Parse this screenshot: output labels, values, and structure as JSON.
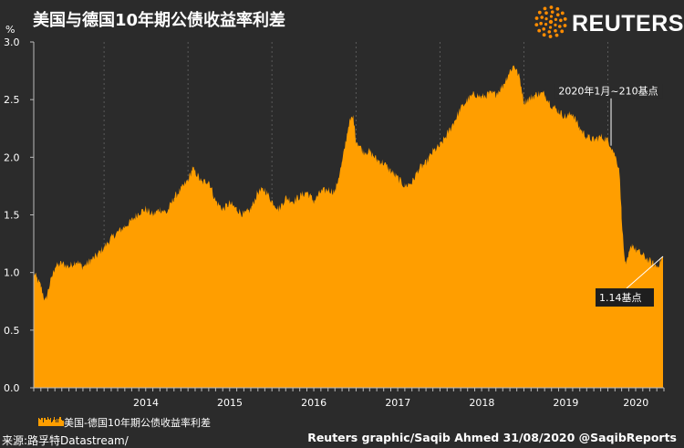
{
  "header": {
    "title": "美国与德国10年期公债收益率利差",
    "brand": "REUTERS"
  },
  "footer": {
    "source": "来源:路孚特Datastream/",
    "credit": "Reuters graphic/Saqib Ahmed 31/08/2020 @SaqibReports"
  },
  "colors": {
    "background": "#2b2b2b",
    "area": "#ff9e00",
    "grid": "#5a5a5a",
    "brand_logo": "#ff8c00"
  },
  "chart_data": {
    "type": "area",
    "unit_label": "%",
    "y_range": [
      0,
      3.0
    ],
    "y_ticks": [
      0.0,
      0.5,
      1.0,
      1.5,
      2.0,
      2.5,
      3.0
    ],
    "y_tick_labels": [
      "0.0",
      "0.5",
      "1.0",
      "1.5",
      "2.0",
      "2.5",
      "3.0"
    ],
    "x_range": [
      "2013-03-01",
      "2020-09-01"
    ],
    "x_tick_labels": [
      "2014",
      "2015",
      "2016",
      "2017",
      "2018",
      "2019",
      "2020"
    ],
    "grid": "vertical dashed at year boundaries",
    "legend": {
      "label": "美国-德国10年期公债收益率利差",
      "placement": "bottom-left"
    },
    "annotations": [
      {
        "text": "2020年1月~210基点",
        "x": "2020-01-15",
        "y": 2.1
      },
      {
        "text": "1.14基点",
        "x": "2020-08-28",
        "y": 1.14
      }
    ],
    "series": [
      {
        "name": "美国-德国10年期公债收益率利差",
        "points": [
          [
            "2013-03-01",
            1.0
          ],
          [
            "2013-04-01",
            0.88
          ],
          [
            "2013-04-20",
            0.75
          ],
          [
            "2013-05-10",
            0.9
          ],
          [
            "2013-06-01",
            1.05
          ],
          [
            "2013-07-01",
            1.08
          ],
          [
            "2013-08-01",
            1.05
          ],
          [
            "2013-09-01",
            1.1
          ],
          [
            "2013-10-01",
            1.05
          ],
          [
            "2013-11-01",
            1.1
          ],
          [
            "2013-12-01",
            1.15
          ],
          [
            "2014-01-01",
            1.22
          ],
          [
            "2014-02-01",
            1.3
          ],
          [
            "2014-03-01",
            1.35
          ],
          [
            "2014-04-01",
            1.4
          ],
          [
            "2014-05-01",
            1.45
          ],
          [
            "2014-06-01",
            1.52
          ],
          [
            "2014-07-01",
            1.55
          ],
          [
            "2014-08-01",
            1.5
          ],
          [
            "2014-09-01",
            1.55
          ],
          [
            "2014-10-01",
            1.52
          ],
          [
            "2014-11-01",
            1.65
          ],
          [
            "2014-12-01",
            1.72
          ],
          [
            "2015-01-01",
            1.8
          ],
          [
            "2015-01-20",
            1.9
          ],
          [
            "2015-02-10",
            1.85
          ],
          [
            "2015-03-01",
            1.78
          ],
          [
            "2015-04-01",
            1.8
          ],
          [
            "2015-05-01",
            1.62
          ],
          [
            "2015-06-01",
            1.55
          ],
          [
            "2015-07-01",
            1.6
          ],
          [
            "2015-08-01",
            1.55
          ],
          [
            "2015-09-01",
            1.5
          ],
          [
            "2015-10-01",
            1.55
          ],
          [
            "2015-11-01",
            1.7
          ],
          [
            "2015-12-01",
            1.72
          ],
          [
            "2016-01-01",
            1.62
          ],
          [
            "2016-02-01",
            1.55
          ],
          [
            "2016-03-01",
            1.65
          ],
          [
            "2016-04-01",
            1.62
          ],
          [
            "2016-05-01",
            1.66
          ],
          [
            "2016-06-01",
            1.7
          ],
          [
            "2016-07-01",
            1.62
          ],
          [
            "2016-08-01",
            1.7
          ],
          [
            "2016-09-01",
            1.72
          ],
          [
            "2016-10-01",
            1.7
          ],
          [
            "2016-11-01",
            1.95
          ],
          [
            "2016-12-01",
            2.3
          ],
          [
            "2016-12-20",
            2.35
          ],
          [
            "2017-01-01",
            2.15
          ],
          [
            "2017-02-01",
            2.05
          ],
          [
            "2017-03-01",
            2.05
          ],
          [
            "2017-04-01",
            1.98
          ],
          [
            "2017-05-01",
            1.95
          ],
          [
            "2017-06-01",
            1.88
          ],
          [
            "2017-07-01",
            1.82
          ],
          [
            "2017-08-01",
            1.75
          ],
          [
            "2017-09-01",
            1.78
          ],
          [
            "2017-10-01",
            1.9
          ],
          [
            "2017-11-01",
            1.95
          ],
          [
            "2017-12-01",
            2.05
          ],
          [
            "2018-01-01",
            2.1
          ],
          [
            "2018-02-01",
            2.2
          ],
          [
            "2018-03-01",
            2.3
          ],
          [
            "2018-04-01",
            2.42
          ],
          [
            "2018-05-01",
            2.5
          ],
          [
            "2018-06-01",
            2.55
          ],
          [
            "2018-07-01",
            2.52
          ],
          [
            "2018-08-01",
            2.55
          ],
          [
            "2018-09-01",
            2.55
          ],
          [
            "2018-10-01",
            2.62
          ],
          [
            "2018-11-01",
            2.75
          ],
          [
            "2018-11-20",
            2.8
          ],
          [
            "2018-12-15",
            2.68
          ],
          [
            "2019-01-01",
            2.48
          ],
          [
            "2019-02-01",
            2.52
          ],
          [
            "2019-03-01",
            2.55
          ],
          [
            "2019-04-01",
            2.55
          ],
          [
            "2019-05-01",
            2.45
          ],
          [
            "2019-06-01",
            2.4
          ],
          [
            "2019-07-01",
            2.35
          ],
          [
            "2019-08-01",
            2.38
          ],
          [
            "2019-09-01",
            2.25
          ],
          [
            "2019-10-01",
            2.18
          ],
          [
            "2019-11-01",
            2.15
          ],
          [
            "2019-12-01",
            2.18
          ],
          [
            "2020-01-01",
            2.15
          ],
          [
            "2020-01-15",
            2.1
          ],
          [
            "2020-02-01",
            2.02
          ],
          [
            "2020-02-20",
            1.9
          ],
          [
            "2020-03-01",
            1.5
          ],
          [
            "2020-03-10",
            1.2
          ],
          [
            "2020-03-20",
            1.05
          ],
          [
            "2020-04-01",
            1.15
          ],
          [
            "2020-04-15",
            1.25
          ],
          [
            "2020-05-01",
            1.2
          ],
          [
            "2020-06-01",
            1.15
          ],
          [
            "2020-07-01",
            1.1
          ],
          [
            "2020-08-01",
            1.05
          ],
          [
            "2020-08-28",
            1.14
          ]
        ]
      }
    ]
  }
}
